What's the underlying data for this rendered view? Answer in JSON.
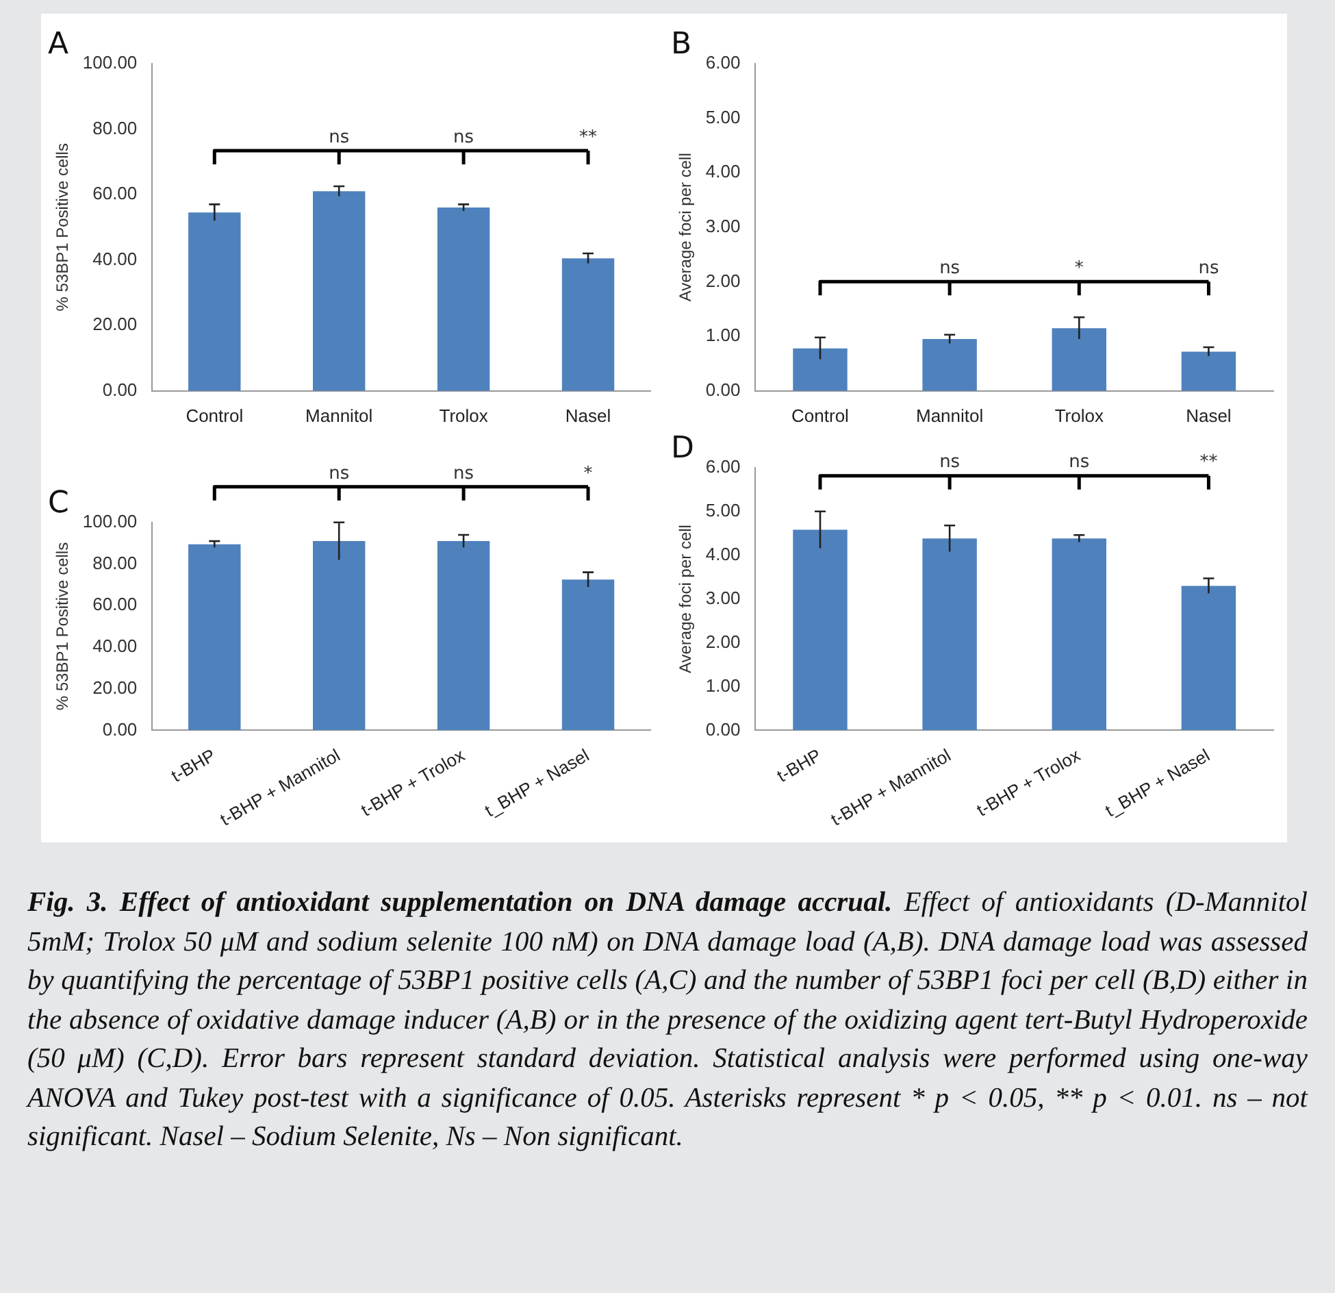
{
  "chart_data": [
    {
      "type": "bar",
      "title": "A",
      "ylabel": "% 53BP1 Positive cells",
      "categories": [
        "Control",
        "Mannitol",
        "Trolox",
        "Nasel"
      ],
      "values": [
        54.5,
        61,
        56,
        40.5
      ],
      "errors": [
        2.5,
        1.5,
        1,
        1.5
      ],
      "color": "#4f81bd",
      "ylim": [
        0,
        100
      ],
      "yticks": [
        {
          "value": 0,
          "label": "0.00"
        },
        {
          "value": 20,
          "label": "20.00"
        },
        {
          "value": 40,
          "label": "40.00"
        },
        {
          "value": 60,
          "label": "60.00"
        },
        {
          "value": 80,
          "label": "80.00"
        },
        {
          "value": 100,
          "label": "100.00"
        }
      ],
      "grid": false,
      "legend": false,
      "annotations": [
        "ns",
        "ns",
        "**"
      ]
    },
    {
      "type": "bar",
      "title": "B",
      "ylabel": "Average foci per cell",
      "categories": [
        "Control",
        "Mannitol",
        "Trolox",
        "Nasel"
      ],
      "values": [
        0.78,
        0.95,
        1.15,
        0.72
      ],
      "errors": [
        0.2,
        0.08,
        0.2,
        0.08
      ],
      "color": "#4f81bd",
      "ylim": [
        0,
        6
      ],
      "yticks": [
        {
          "value": 0,
          "label": "0.00"
        },
        {
          "value": 1,
          "label": "1.00"
        },
        {
          "value": 2,
          "label": "2.00"
        },
        {
          "value": 3,
          "label": "3.00"
        },
        {
          "value": 4,
          "label": "4.00"
        },
        {
          "value": 5,
          "label": "5.00"
        },
        {
          "value": 6,
          "label": "6.00"
        }
      ],
      "grid": false,
      "legend": false,
      "annotations": [
        "ns",
        "*",
        "ns"
      ]
    },
    {
      "type": "bar",
      "title": "C",
      "ylabel": "% 53BP1 Positive cells",
      "categories": [
        "t-BHP",
        "t-BHP + Mannitol",
        "t-BHP + Trolox",
        "t_BHP + Nasel"
      ],
      "values": [
        89.5,
        91,
        91,
        72.5
      ],
      "errors": [
        1.5,
        9,
        3,
        3.5
      ],
      "color": "#4f81bd",
      "ylim": [
        0,
        100
      ],
      "yticks": [
        {
          "value": 0,
          "label": "0.00"
        },
        {
          "value": 20,
          "label": "20.00"
        },
        {
          "value": 40,
          "label": "40.00"
        },
        {
          "value": 60,
          "label": "60.00"
        },
        {
          "value": 80,
          "label": "80.00"
        },
        {
          "value": 100,
          "label": "100.00"
        }
      ],
      "grid": false,
      "legend": false,
      "annotations": [
        "ns",
        "ns",
        "*"
      ]
    },
    {
      "type": "bar",
      "title": "D",
      "ylabel": "Average foci per cell",
      "categories": [
        "t-BHP",
        "t-BHP + Mannitol",
        "t-BHP + Trolox",
        "t_BHP + Nasel"
      ],
      "values": [
        4.58,
        4.38,
        4.38,
        3.3
      ],
      "errors": [
        0.42,
        0.3,
        0.08,
        0.17
      ],
      "color": "#4f81bd",
      "ylim": [
        0,
        6
      ],
      "yticks": [
        {
          "value": 0,
          "label": "0.00"
        },
        {
          "value": 1,
          "label": "1.00"
        },
        {
          "value": 2,
          "label": "2.00"
        },
        {
          "value": 3,
          "label": "3.00"
        },
        {
          "value": 4,
          "label": "4.00"
        },
        {
          "value": 5,
          "label": "5.00"
        },
        {
          "value": 6,
          "label": "6.00"
        }
      ],
      "grid": false,
      "legend": false,
      "annotations": [
        "ns",
        "ns",
        "**",
        "Fig. 3. Effect of antioxidant supplementation on DNA damage accrual.",
        "Effect of antioxidants (D-Mannitol 5mM; Trolox 50 μM and sodium selenite 100 nM) on DNA damage load (A,B). DNA damage load was assessed by quantifying the percentage of 53BP1 positive cells (A,C) and the number of 53BP1 foci per cell (B,D) either in the absence of oxidative damage inducer (A,B) or in the presence of the oxidizing agent tert-Butyl Hydroperoxide (50 μM) (C,D). Error bars represent standard deviation. Statistical analysis were performed using one-way ANOVA and Tukey post-test with a significance of 0.05. Asterisks represent * p < 0.05, ** p < 0.01. ns – not significant. Nasel – Sodium Selenite, Ns – Non significant."
      ]
    }
  ]
}
